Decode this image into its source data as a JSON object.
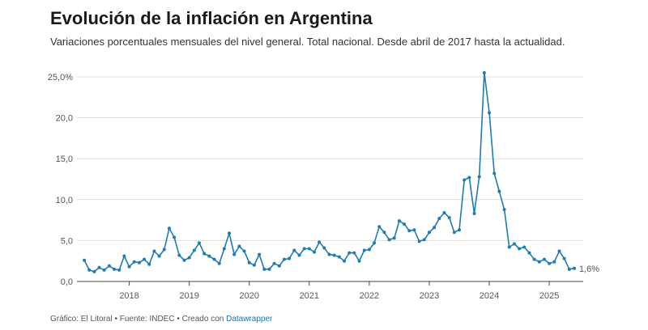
{
  "header": {
    "title": "Evolución de la inflación en Argentina",
    "subtitle": "Variaciones porcentuales mensuales del nivel general. Total nacional. Desde abril de 2017 hasta la actualidad."
  },
  "footer": {
    "text": "Gráfico: El Litoral • Fuente: INDEC • Creado con ",
    "link": "Datawrapper"
  },
  "colors": {
    "line": "#1f7bb0",
    "marker": "#1f7bb0",
    "grid": "#dddddd"
  },
  "chart_data": {
    "type": "line",
    "title": "Evolución de la inflación en Argentina",
    "subtitle": "Variaciones porcentuales mensuales del nivel general. Total nacional. Desde abril de 2017 hasta la actualidad.",
    "xlabel": "",
    "ylabel": "",
    "ylim": [
      0,
      25
    ],
    "yticks": [
      0,
      5,
      10,
      15,
      20,
      25
    ],
    "ytick_labels": [
      "0,0",
      "5,0",
      "10,0",
      "15,0",
      "20,0",
      "25,0%"
    ],
    "xticks": [
      2018,
      2019,
      2020,
      2021,
      2022,
      2023,
      2024,
      2025
    ],
    "xtick_labels": [
      "2018",
      "2019",
      "2020",
      "2021",
      "2022",
      "2023",
      "2024",
      "2025"
    ],
    "grid": true,
    "last_label": "1,6%",
    "series": [
      {
        "x": [
          "2017-04",
          "2017-05",
          "2017-06",
          "2017-07",
          "2017-08",
          "2017-09",
          "2017-10",
          "2017-11",
          "2017-12",
          "2018-01",
          "2018-02",
          "2018-03",
          "2018-04",
          "2018-05",
          "2018-06",
          "2018-07",
          "2018-08",
          "2018-09",
          "2018-10",
          "2018-11",
          "2018-12",
          "2019-01",
          "2019-02",
          "2019-03",
          "2019-04",
          "2019-05",
          "2019-06",
          "2019-07",
          "2019-08",
          "2019-09",
          "2019-10",
          "2019-11",
          "2019-12",
          "2020-01",
          "2020-02",
          "2020-03",
          "2020-04",
          "2020-05",
          "2020-06",
          "2020-07",
          "2020-08",
          "2020-09",
          "2020-10",
          "2020-11",
          "2020-12",
          "2021-01",
          "2021-02",
          "2021-03",
          "2021-04",
          "2021-05",
          "2021-06",
          "2021-07",
          "2021-08",
          "2021-09",
          "2021-10",
          "2021-11",
          "2021-12",
          "2022-01",
          "2022-02",
          "2022-03",
          "2022-04",
          "2022-05",
          "2022-06",
          "2022-07",
          "2022-08",
          "2022-09",
          "2022-10",
          "2022-11",
          "2022-12",
          "2023-01",
          "2023-02",
          "2023-03",
          "2023-04",
          "2023-05",
          "2023-06",
          "2023-07",
          "2023-08",
          "2023-09",
          "2023-10",
          "2023-11",
          "2023-12",
          "2024-01",
          "2024-02",
          "2024-03",
          "2024-04",
          "2024-05",
          "2024-06",
          "2024-07",
          "2024-08",
          "2024-09",
          "2024-10",
          "2024-11",
          "2024-12",
          "2025-01",
          "2025-02",
          "2025-03",
          "2025-04",
          "2025-05",
          "2025-06"
        ],
        "values": [
          2.6,
          1.4,
          1.2,
          1.7,
          1.4,
          1.9,
          1.5,
          1.4,
          3.1,
          1.8,
          2.4,
          2.3,
          2.7,
          2.1,
          3.7,
          3.1,
          3.9,
          6.5,
          5.4,
          3.2,
          2.6,
          2.9,
          3.8,
          4.7,
          3.4,
          3.1,
          2.7,
          2.2,
          4.0,
          5.9,
          3.3,
          4.3,
          3.7,
          2.3,
          2.0,
          3.3,
          1.5,
          1.5,
          2.2,
          1.9,
          2.7,
          2.8,
          3.8,
          3.2,
          4.0,
          4.0,
          3.6,
          4.8,
          4.1,
          3.3,
          3.2,
          3.0,
          2.5,
          3.5,
          3.5,
          2.5,
          3.8,
          3.9,
          4.7,
          6.7,
          6.0,
          5.1,
          5.3,
          7.4,
          7.0,
          6.2,
          6.3,
          4.9,
          5.1,
          6.0,
          6.6,
          7.7,
          8.4,
          7.8,
          6.0,
          6.3,
          12.4,
          12.7,
          8.3,
          12.8,
          25.5,
          20.6,
          13.2,
          11.0,
          8.8,
          4.2,
          4.6,
          4.0,
          4.2,
          3.5,
          2.7,
          2.4,
          2.7,
          2.2,
          2.4,
          3.7,
          2.8,
          1.5,
          1.6
        ]
      }
    ]
  }
}
